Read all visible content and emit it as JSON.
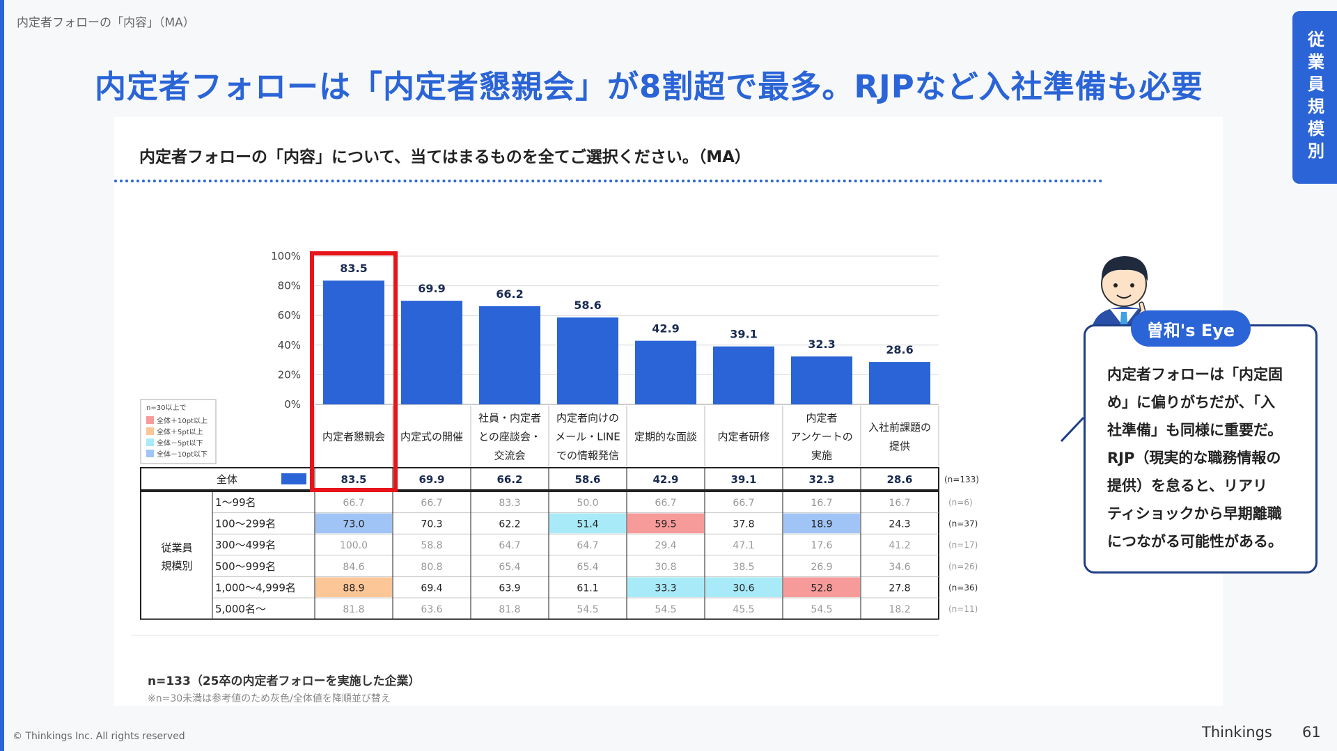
{
  "page": {
    "breadcrumb": "内定者フォローの「内容」（MA）",
    "headline": "内定者フォローは「内定者懇親会」が8割超で最多。RJPなど入社準備も必要",
    "side_tab": "従業員規模別",
    "question": "内定者フォローの「内容」について、当てはまるものを全てご選択ください。（MA）",
    "eye_label": "曽和's Eye",
    "eye_lines": [
      "内定者フォローは「内定固",
      "め」に偏りがちだが、「入",
      "社準備」も同様に重要だ。",
      "RJP（現実的な職務情報の",
      "提供）を怠ると、リアリ",
      "ティショックから早期離職",
      "につながる可能性がある。"
    ],
    "note_n": "n=133（25卒の内定者フォローを実施した企業）",
    "note_ref": "※n=30未満は参考値のため灰色/全体値を降順並び替え",
    "copyright": "© Thinkings Inc. All rights reserved",
    "brand": "Thinkings",
    "page_number": "61"
  },
  "legend": {
    "title": "n=30以上で",
    "items": [
      {
        "label": "全体＋10pt以上",
        "color": "#f79a9a"
      },
      {
        "label": "全体＋5pt以上",
        "color": "#fcc697"
      },
      {
        "label": "全体－5pt以下",
        "color": "#a8eaf7"
      },
      {
        "label": "全体－10pt以下",
        "color": "#a0c4f5"
      }
    ]
  },
  "chart_data": {
    "type": "bar",
    "categories": [
      [
        "内定者懇親会"
      ],
      [
        "内定式の開催"
      ],
      [
        "社員・内定者",
        "との座談会・",
        "交流会"
      ],
      [
        "内定者向けの",
        "メール・LINE",
        "での情報発信"
      ],
      [
        "定期的な面談"
      ],
      [
        "内定者研修"
      ],
      [
        "内定者",
        "アンケートの",
        "実施"
      ],
      [
        "入社前課題の",
        "提供"
      ]
    ],
    "values": [
      83.5,
      69.9,
      66.2,
      58.6,
      42.9,
      39.1,
      32.3,
      28.6
    ],
    "value_labels": [
      "83.5",
      "69.9",
      "66.2",
      "58.6",
      "42.9",
      "39.1",
      "32.3",
      "28.6"
    ],
    "y_ticks": [
      "0%",
      "20%",
      "40%",
      "60%",
      "80%",
      "100%"
    ],
    "ylim": [
      0,
      100
    ],
    "bar_color": "#2a64d6",
    "highlight_category_index": 0,
    "highlight_color": "#e8141b",
    "total_row": {
      "label": "全体",
      "values": [
        "83.5",
        "69.9",
        "66.2",
        "58.6",
        "42.9",
        "39.1",
        "32.3",
        "28.6"
      ],
      "n": "(n=133)"
    },
    "group_label": [
      "従業員",
      "規模別"
    ],
    "rows": [
      {
        "label": "1～99名",
        "n": "(n=6)",
        "reference": true,
        "values": [
          "66.7",
          "66.7",
          "83.3",
          "50.0",
          "66.7",
          "66.7",
          "16.7",
          "16.7"
        ],
        "marks": [
          "",
          "",
          "",
          "",
          "",
          "",
          "",
          ""
        ]
      },
      {
        "label": "100～299名",
        "n": "(n=37)",
        "reference": false,
        "values": [
          "73.0",
          "70.3",
          "62.2",
          "51.4",
          "59.5",
          "37.8",
          "18.9",
          "24.3"
        ],
        "marks": [
          "m10",
          "",
          "",
          "m5",
          "p10",
          "",
          "m10",
          ""
        ]
      },
      {
        "label": "300～499名",
        "n": "(n=17)",
        "reference": true,
        "values": [
          "100.0",
          "58.8",
          "64.7",
          "64.7",
          "29.4",
          "47.1",
          "17.6",
          "41.2"
        ],
        "marks": [
          "",
          "",
          "",
          "",
          "",
          "",
          "",
          ""
        ]
      },
      {
        "label": "500～999名",
        "n": "(n=26)",
        "reference": true,
        "values": [
          "84.6",
          "80.8",
          "65.4",
          "65.4",
          "30.8",
          "38.5",
          "26.9",
          "34.6"
        ],
        "marks": [
          "",
          "",
          "",
          "",
          "",
          "",
          "",
          ""
        ]
      },
      {
        "label": "1,000～4,999名",
        "n": "(n=36)",
        "reference": false,
        "values": [
          "88.9",
          "69.4",
          "63.9",
          "61.1",
          "33.3",
          "30.6",
          "52.8",
          "27.8"
        ],
        "marks": [
          "p5",
          "",
          "",
          "",
          "m5",
          "m5",
          "p10",
          ""
        ]
      },
      {
        "label": "5,000名～",
        "n": "(n=11)",
        "reference": true,
        "values": [
          "81.8",
          "63.6",
          "81.8",
          "54.5",
          "54.5",
          "45.5",
          "54.5",
          "18.2"
        ],
        "marks": [
          "",
          "",
          "",
          "",
          "",
          "",
          "",
          ""
        ]
      }
    ],
    "mark_colors": {
      "p10": "#f79a9a",
      "p5": "#fcc697",
      "m5": "#a8eaf7",
      "m10": "#a0c4f5"
    }
  }
}
